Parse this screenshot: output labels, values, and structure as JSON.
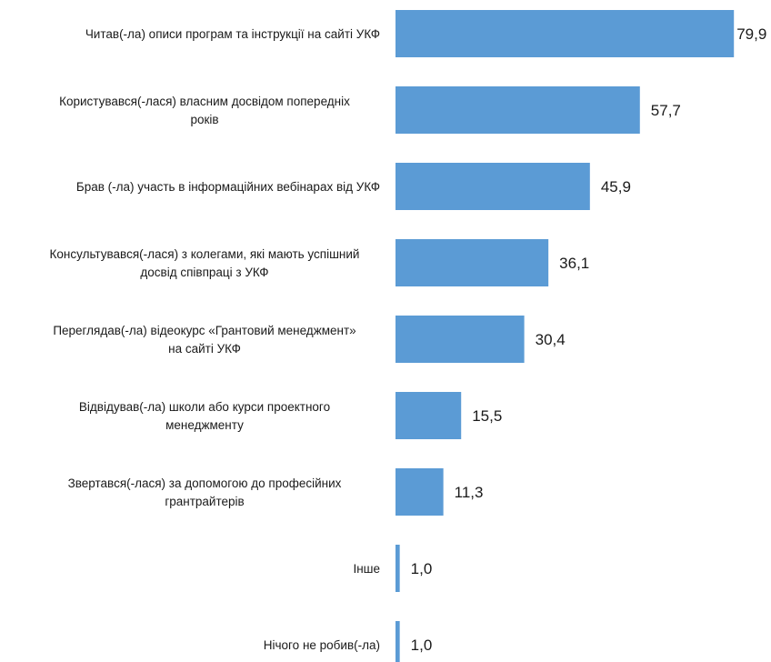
{
  "chart_data": {
    "type": "bar",
    "orientation": "horizontal",
    "categories": [
      "Читав(-ла) описи програм та інструкції на сайті УКФ",
      "Користувався(-лася) власним досвідом попередніх років",
      "Брав (-ла) участь в інформаційних вебінарах від УКФ",
      "Консультувався(-лася) з колегами, які мають успішний досвід співпраці з УКФ",
      "Переглядав(-ла) відеокурс «Грантовий менеджмент» на сайті УКФ",
      "Відвідував(-ла) школи або курси проектного менеджменту",
      "Звертався(-лася) за допомогою до професійних грантрайтерів",
      "Інше",
      "Нічого не робив(-ла)"
    ],
    "category_lines": [
      [
        "Читав(-ла) описи програм та інструкції на сайті УКФ"
      ],
      [
        "Користувався(-лася) власним досвідом попередніх",
        "років"
      ],
      [
        "Брав (-ла) участь в інформаційних вебінарах від УКФ"
      ],
      [
        "Консультувався(-лася) з колегами, які мають успішний",
        "досвід співпраці з УКФ"
      ],
      [
        "Переглядав(-ла) відеокурс «Грантовий менеджмент»",
        "на сайті УКФ"
      ],
      [
        "Відвідував(-ла) школи або курси проектного",
        "менеджменту"
      ],
      [
        "Звертався(-лася) за допомогою до професійних",
        "грантрайтерів"
      ],
      [
        "Інше"
      ],
      [
        "Нічого не робив(-ла)"
      ]
    ],
    "values": [
      79.9,
      57.7,
      45.9,
      36.1,
      30.4,
      15.5,
      11.3,
      1.0,
      1.0
    ],
    "value_labels": [
      "79,9",
      "57,7",
      "45,9",
      "36,1",
      "30,4",
      "15,5",
      "11,3",
      "1,0",
      "1,0"
    ],
    "xlim": [
      0,
      80.5
    ],
    "grid": false,
    "legend": "none",
    "bar_color": "#5b9bd5"
  }
}
